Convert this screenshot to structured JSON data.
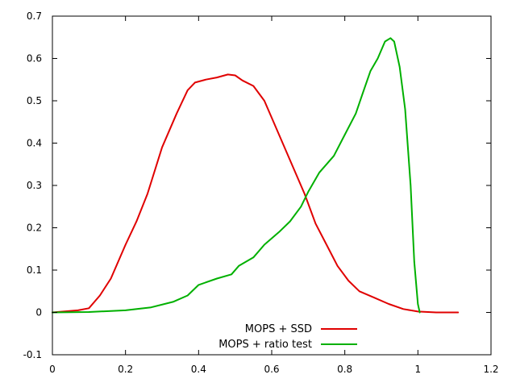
{
  "chart_data": {
    "type": "line",
    "title": "",
    "xlabel": "",
    "ylabel": "",
    "xlim": [
      0,
      1.2
    ],
    "ylim": [
      -0.1,
      0.7
    ],
    "x_ticks": [
      0,
      0.2,
      0.4,
      0.6,
      0.8,
      1,
      1.2
    ],
    "x_tick_labels": [
      "0",
      "0.2",
      "0.4",
      "0.6",
      "0.8",
      "1",
      "1.2"
    ],
    "y_ticks": [
      -0.1,
      0,
      0.1,
      0.2,
      0.3,
      0.4,
      0.5,
      0.6,
      0.7
    ],
    "y_tick_labels": [
      "-0.1",
      "0",
      "0.1",
      "0.2",
      "0.3",
      "0.4",
      "0.5",
      "0.6",
      "0.7"
    ],
    "grid": false,
    "legend_position": "bottom-center",
    "series": [
      {
        "name": "MOPS + SSD",
        "color": "#e00000",
        "x": [
          0,
          0.07,
          0.1,
          0.13,
          0.16,
          0.2,
          0.23,
          0.26,
          0.3,
          0.34,
          0.37,
          0.39,
          0.42,
          0.45,
          0.48,
          0.5,
          0.52,
          0.55,
          0.58,
          0.6,
          0.63,
          0.66,
          0.69,
          0.72,
          0.75,
          0.78,
          0.81,
          0.84,
          0.88,
          0.92,
          0.96,
          1.0,
          1.05,
          1.11
        ],
        "y": [
          0,
          0.005,
          0.01,
          0.04,
          0.08,
          0.16,
          0.215,
          0.28,
          0.39,
          0.47,
          0.525,
          0.543,
          0.55,
          0.555,
          0.562,
          0.56,
          0.548,
          0.535,
          0.5,
          0.46,
          0.4,
          0.34,
          0.28,
          0.21,
          0.16,
          0.11,
          0.075,
          0.05,
          0.035,
          0.02,
          0.008,
          0.002,
          0,
          0
        ]
      },
      {
        "name": "MOPS + ratio test",
        "color": "#00b000",
        "x": [
          0,
          0.1,
          0.2,
          0.27,
          0.33,
          0.37,
          0.4,
          0.45,
          0.49,
          0.51,
          0.55,
          0.58,
          0.62,
          0.65,
          0.68,
          0.7,
          0.73,
          0.77,
          0.8,
          0.83,
          0.85,
          0.87,
          0.89,
          0.91,
          0.925,
          0.935,
          0.95,
          0.965,
          0.98,
          0.99,
          1.0,
          1.005
        ],
        "y": [
          0,
          0.001,
          0.005,
          0.012,
          0.025,
          0.04,
          0.065,
          0.08,
          0.09,
          0.11,
          0.13,
          0.16,
          0.19,
          0.215,
          0.25,
          0.285,
          0.33,
          0.37,
          0.42,
          0.47,
          0.52,
          0.57,
          0.6,
          0.64,
          0.648,
          0.64,
          0.58,
          0.48,
          0.3,
          0.12,
          0.02,
          0
        ]
      }
    ]
  }
}
